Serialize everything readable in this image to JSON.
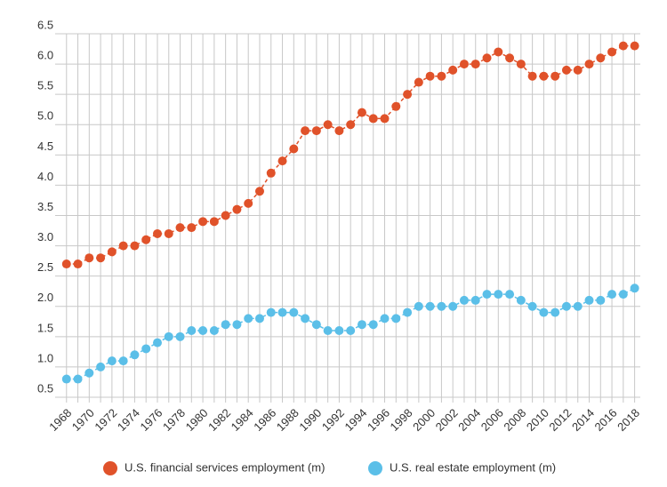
{
  "chart_data": {
    "type": "line",
    "x": [
      1968,
      1969,
      1970,
      1971,
      1972,
      1973,
      1974,
      1975,
      1976,
      1977,
      1978,
      1979,
      1980,
      1981,
      1982,
      1983,
      1984,
      1985,
      1986,
      1987,
      1988,
      1989,
      1990,
      1991,
      1992,
      1993,
      1994,
      1995,
      1996,
      1997,
      1998,
      1999,
      2000,
      2001,
      2002,
      2003,
      2004,
      2005,
      2006,
      2007,
      2008,
      2009,
      2010,
      2011,
      2012,
      2013,
      2014,
      2015,
      2016,
      2017,
      2018
    ],
    "series": [
      {
        "name": "U.S. financial services employment (m)",
        "color": "#e0522a",
        "values": [
          2.7,
          2.7,
          2.8,
          2.8,
          2.9,
          3.0,
          3.0,
          3.1,
          3.2,
          3.2,
          3.3,
          3.3,
          3.4,
          3.4,
          3.5,
          3.6,
          3.7,
          3.9,
          4.2,
          4.4,
          4.6,
          4.9,
          4.9,
          5.0,
          4.9,
          5.0,
          5.2,
          5.1,
          5.1,
          5.3,
          5.5,
          5.7,
          5.8,
          5.8,
          5.9,
          6.0,
          6.0,
          6.1,
          6.2,
          6.1,
          6.0,
          5.8,
          5.8,
          5.8,
          5.9,
          5.9,
          6.0,
          6.1,
          6.2,
          6.3,
          6.3
        ]
      },
      {
        "name": "U.S. real estate employment (m)",
        "color": "#5bbfe8",
        "values": [
          0.8,
          0.8,
          0.9,
          1.0,
          1.1,
          1.1,
          1.2,
          1.3,
          1.4,
          1.5,
          1.5,
          1.6,
          1.6,
          1.6,
          1.7,
          1.7,
          1.8,
          1.8,
          1.9,
          1.9,
          1.9,
          1.8,
          1.7,
          1.6,
          1.6,
          1.6,
          1.7,
          1.7,
          1.8,
          1.8,
          1.9,
          2.0,
          2.0,
          2.0,
          2.0,
          2.1,
          2.1,
          2.2,
          2.2,
          2.2,
          2.1,
          2.0,
          1.9,
          1.9,
          2.0,
          2.0,
          2.1,
          2.1,
          2.2,
          2.2,
          2.3
        ]
      }
    ],
    "xlim": [
      1967,
      2018.5
    ],
    "xticks": [
      1968,
      1970,
      1972,
      1974,
      1976,
      1978,
      1980,
      1982,
      1984,
      1986,
      1988,
      1990,
      1992,
      1994,
      1996,
      1998,
      2000,
      2002,
      2004,
      2006,
      2008,
      2010,
      2012,
      2014,
      2016,
      2018
    ],
    "ylim": [
      0.5,
      6.5
    ],
    "yticks": [
      0.5,
      {
        "value": 1,
        "label": "1.0"
      },
      1.5,
      {
        "value": 2,
        "label": "2.0"
      },
      2.5,
      {
        "value": 3,
        "label": "3.0"
      },
      3.5,
      {
        "value": 4,
        "label": "4.0"
      },
      4.5,
      {
        "value": 5,
        "label": "5.0"
      },
      5.5,
      {
        "value": 6,
        "label": "6.0"
      },
      6.5
    ],
    "grid": true,
    "legend": "bottom"
  }
}
